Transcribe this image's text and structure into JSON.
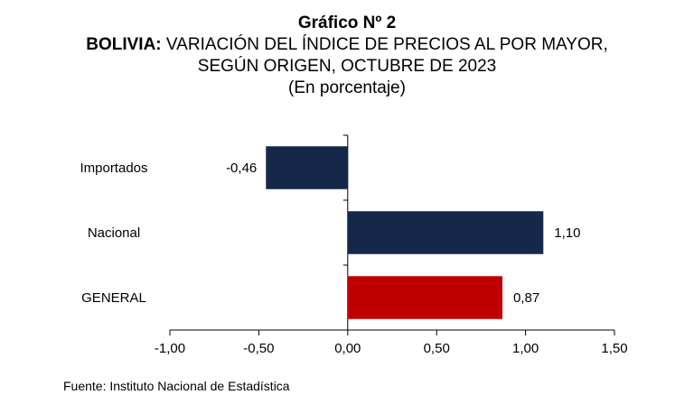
{
  "title": "Gráfico Nº 2",
  "subtitle_prefix": "BOLIVIA:",
  "subtitle_line1_rest": " VARIACIÓN DEL ÍNDICE DE PRECIOS AL POR MAYOR,",
  "subtitle_line2": "SEGÚN ORIGEN, OCTUBRE DE 2023",
  "unit_note": "(En porcentaje)",
  "source": "Fuente: Instituto Nacional de Estadística",
  "chart_data": {
    "type": "bar",
    "orientation": "horizontal",
    "categories": [
      "Importados",
      "Nacional",
      "GENERAL"
    ],
    "values": [
      -0.46,
      1.1,
      0.87
    ],
    "value_labels": [
      "-0,46",
      "1,10",
      "0,87"
    ],
    "bar_colors": [
      "#15284a",
      "#15284a",
      "#c00000"
    ],
    "xlim": [
      -1.0,
      1.5
    ],
    "xticks": [
      -1.0,
      -0.5,
      0.0,
      0.5,
      1.0,
      1.5
    ],
    "xtick_labels": [
      "-1,00",
      "-0,50",
      "0,00",
      "0,50",
      "1,00",
      "1,50"
    ],
    "grid": false,
    "legend": "none"
  }
}
